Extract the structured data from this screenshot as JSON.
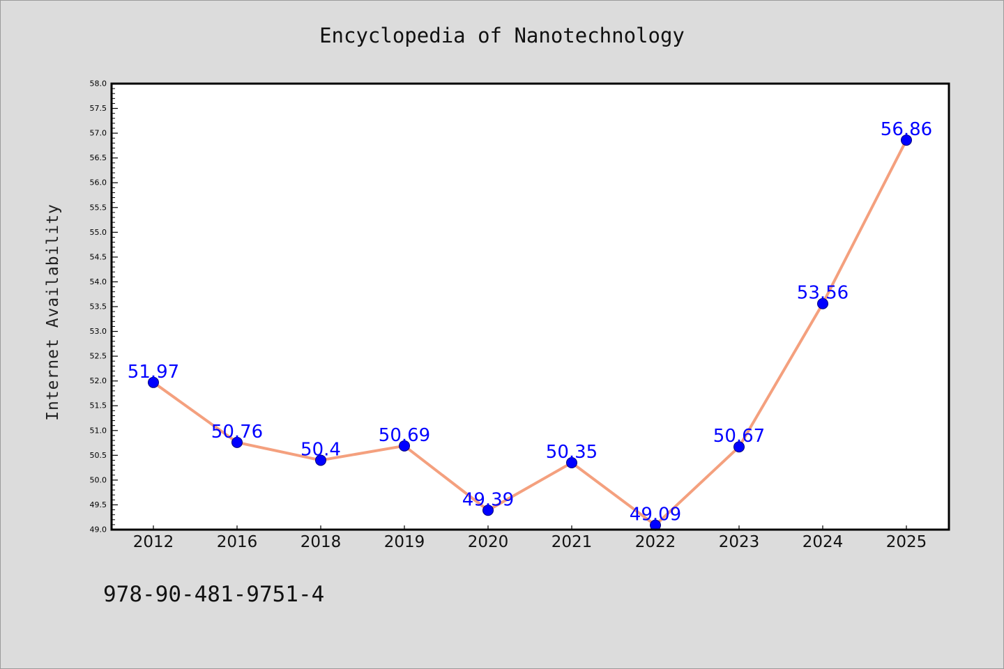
{
  "chart_data": {
    "type": "line",
    "title": "Encyclopedia of Nanotechnology",
    "xlabel": "",
    "ylabel": "Internet Availability",
    "categories": [
      "2012",
      "2016",
      "2018",
      "2019",
      "2020",
      "2021",
      "2022",
      "2023",
      "2024",
      "2025"
    ],
    "values": [
      51.97,
      50.76,
      50.4,
      50.69,
      49.39,
      50.35,
      49.09,
      50.67,
      53.56,
      56.86
    ],
    "data_labels": [
      "51.97",
      "50.76",
      "50.4",
      "50.69",
      "49.39",
      "50.35",
      "49.09",
      "50.67",
      "53.56",
      "56.86"
    ],
    "ylim": [
      49.0,
      58.0
    ],
    "y_ticks": [
      "49.0",
      "49.5",
      "50.0",
      "50.5",
      "51.0",
      "51.5",
      "52.0",
      "52.5",
      "53.0",
      "53.5",
      "54.0",
      "54.5",
      "55.0",
      "55.5",
      "56.0",
      "56.5",
      "57.0",
      "57.5",
      "58.0"
    ],
    "grid": false,
    "legend": "none",
    "colors": {
      "line": "#f4a07e",
      "marker": "#0000ff",
      "data_label": "#0000ff",
      "background": "#dcdcdc",
      "plot_background": "#ffffff"
    }
  },
  "footer": {
    "isbn": "978-90-481-9751-4"
  }
}
